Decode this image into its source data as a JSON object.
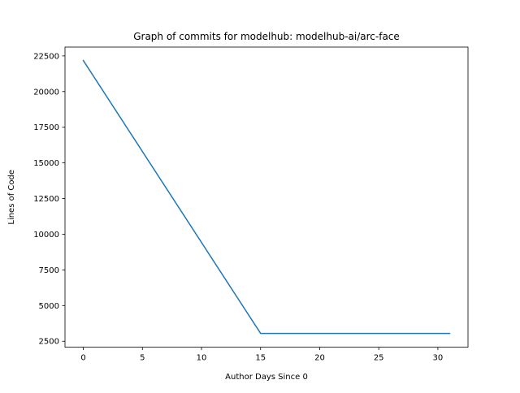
{
  "chart_data": {
    "type": "line",
    "title": "Graph of commits for modelhub: modelhub-ai/arc-face",
    "xlabel": "Author Days Since 0",
    "ylabel": "Lines of Code",
    "xlim": [
      -1.55,
      32.55
    ],
    "ylim": [
      2081,
      23119
    ],
    "xticks": [
      0,
      5,
      10,
      15,
      20,
      25,
      30
    ],
    "yticks": [
      2500,
      5000,
      7500,
      10000,
      12500,
      15000,
      17500,
      20000,
      22500
    ],
    "grid": false,
    "legend": "none",
    "series": [
      {
        "color": "#1f77b4",
        "x": [
          0,
          15,
          31
        ],
        "y": [
          22175,
          3050,
          3050
        ]
      }
    ]
  }
}
